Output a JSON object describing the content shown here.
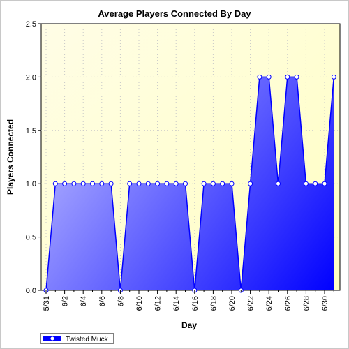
{
  "chart_data": {
    "type": "area",
    "title": "Average Players Connected By Day",
    "xlabel": "Day",
    "ylabel": "Players Connected",
    "ylim": [
      0,
      2.5
    ],
    "yticks": [
      "0.0",
      "0.5",
      "1.0",
      "1.5",
      "2.0",
      "2.5"
    ],
    "xticks": [
      "5/31",
      "6/2",
      "6/4",
      "6/6",
      "6/8",
      "6/10",
      "6/12",
      "6/14",
      "6/16",
      "6/18",
      "6/20",
      "6/22",
      "6/24",
      "6/26",
      "6/28",
      "6/30"
    ],
    "grid": true,
    "legend_position": "bottom-left",
    "x": [
      "5/31",
      "6/1",
      "6/2",
      "6/3",
      "6/4",
      "6/5",
      "6/6",
      "6/7",
      "6/8",
      "6/9",
      "6/10",
      "6/11",
      "6/12",
      "6/13",
      "6/14",
      "6/15",
      "6/16",
      "6/17",
      "6/18",
      "6/19",
      "6/20",
      "6/21",
      "6/22",
      "6/23",
      "6/24",
      "6/25",
      "6/26",
      "6/27",
      "6/28",
      "6/29",
      "6/30",
      "7/1"
    ],
    "series": [
      {
        "name": "Twisted Muck",
        "color": "#0000ff",
        "values": [
          0,
          1,
          1,
          1,
          1,
          1,
          1,
          1,
          0,
          1,
          1,
          1,
          1,
          1,
          1,
          1,
          0,
          1,
          1,
          1,
          1,
          0,
          1,
          2,
          2,
          1,
          2,
          2,
          1,
          1,
          1,
          2
        ]
      }
    ]
  }
}
